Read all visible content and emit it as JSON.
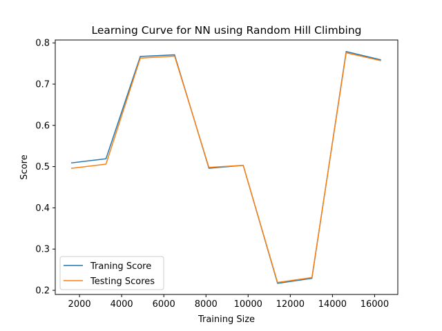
{
  "chart_data": {
    "type": "line",
    "title": "Learning Curve for NN using Random Hill Climbing",
    "xlabel": "Training Size",
    "ylabel": "Score",
    "xlim": [
      850,
      17100
    ],
    "ylim": [
      0.19,
      0.807
    ],
    "xticks": [
      2000,
      4000,
      6000,
      8000,
      10000,
      12000,
      14000,
      16000
    ],
    "yticks": [
      0.2,
      0.3,
      0.4,
      0.5,
      0.6,
      0.7,
      0.8
    ],
    "xtick_labels": [
      "2000",
      "4000",
      "6000",
      "8000",
      "10000",
      "12000",
      "14000",
      "16000"
    ],
    "ytick_labels": [
      "0.2",
      "0.3",
      "0.4",
      "0.5",
      "0.6",
      "0.7",
      "0.8"
    ],
    "x": [
      1628,
      3256,
      4884,
      6512,
      8140,
      9768,
      11396,
      13024,
      14652,
      16280
    ],
    "series": [
      {
        "name": "Traning Score",
        "color": "#1f77b4",
        "values": [
          0.509,
          0.519,
          0.767,
          0.771,
          0.496,
          0.503,
          0.217,
          0.229,
          0.779,
          0.759
        ]
      },
      {
        "name": "Testing Scores",
        "color": "#ff7f0e",
        "values": [
          0.496,
          0.506,
          0.763,
          0.768,
          0.498,
          0.503,
          0.219,
          0.231,
          0.776,
          0.757
        ]
      }
    ],
    "grid": false,
    "legend_position": "lower-left"
  }
}
